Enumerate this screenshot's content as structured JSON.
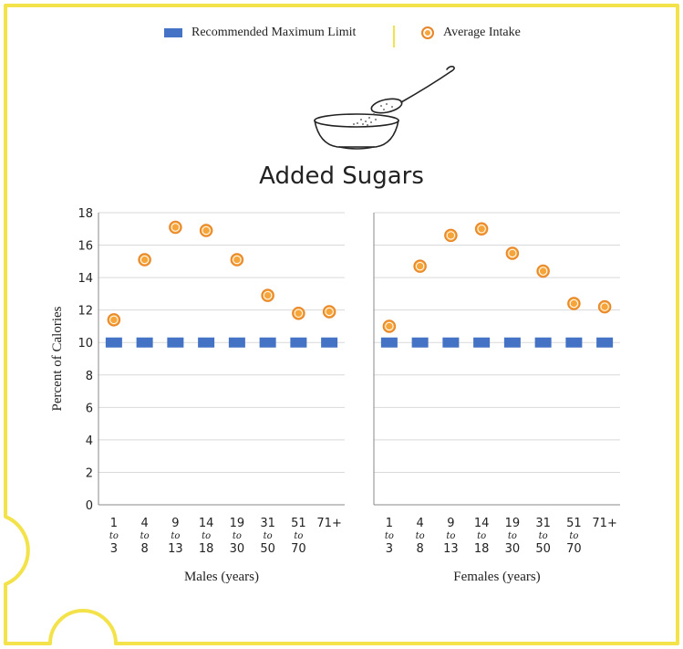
{
  "legend": {
    "recommended_label": "Recommended Maximum Limit",
    "average_label": "Average Intake"
  },
  "colors": {
    "recommended": "#4472c4",
    "average_fill": "#f6a53a",
    "average_stroke": "#e8862a",
    "frame": "#f3e24a",
    "grid": "#d9d9d9"
  },
  "icons": [
    "bowl-with-spoon-icon"
  ],
  "chart_data": {
    "type": "scatter",
    "title": "Added Sugars",
    "ylabel": "Percent of Calories",
    "ylim": [
      0,
      18
    ],
    "yticks": [
      0,
      2,
      4,
      6,
      8,
      10,
      12,
      14,
      16,
      18
    ],
    "grid": true,
    "legend_position": "top",
    "categories": [
      {
        "top": "1",
        "mid": "to",
        "bottom": "3"
      },
      {
        "top": "4",
        "mid": "to",
        "bottom": "8"
      },
      {
        "top": "9",
        "mid": "to",
        "bottom": "13"
      },
      {
        "top": "14",
        "mid": "to",
        "bottom": "18"
      },
      {
        "top": "19",
        "mid": "to",
        "bottom": "30"
      },
      {
        "top": "31",
        "mid": "to",
        "bottom": "50"
      },
      {
        "top": "51",
        "mid": "to",
        "bottom": "70"
      },
      {
        "top": "71+",
        "mid": "",
        "bottom": ""
      }
    ],
    "panels": [
      {
        "xlabel": "Males (years)",
        "series": [
          {
            "name": "Recommended Maximum Limit",
            "values": [
              10,
              10,
              10,
              10,
              10,
              10,
              10,
              10
            ]
          },
          {
            "name": "Average Intake",
            "values": [
              11.4,
              15.1,
              17.1,
              16.9,
              15.1,
              12.9,
              11.8,
              11.9
            ]
          }
        ]
      },
      {
        "xlabel": "Females (years)",
        "series": [
          {
            "name": "Recommended Maximum Limit",
            "values": [
              10,
              10,
              10,
              10,
              10,
              10,
              10,
              10
            ]
          },
          {
            "name": "Average Intake",
            "values": [
              11.0,
              14.7,
              16.6,
              17.0,
              15.5,
              14.4,
              12.4,
              12.2
            ]
          }
        ]
      }
    ]
  }
}
